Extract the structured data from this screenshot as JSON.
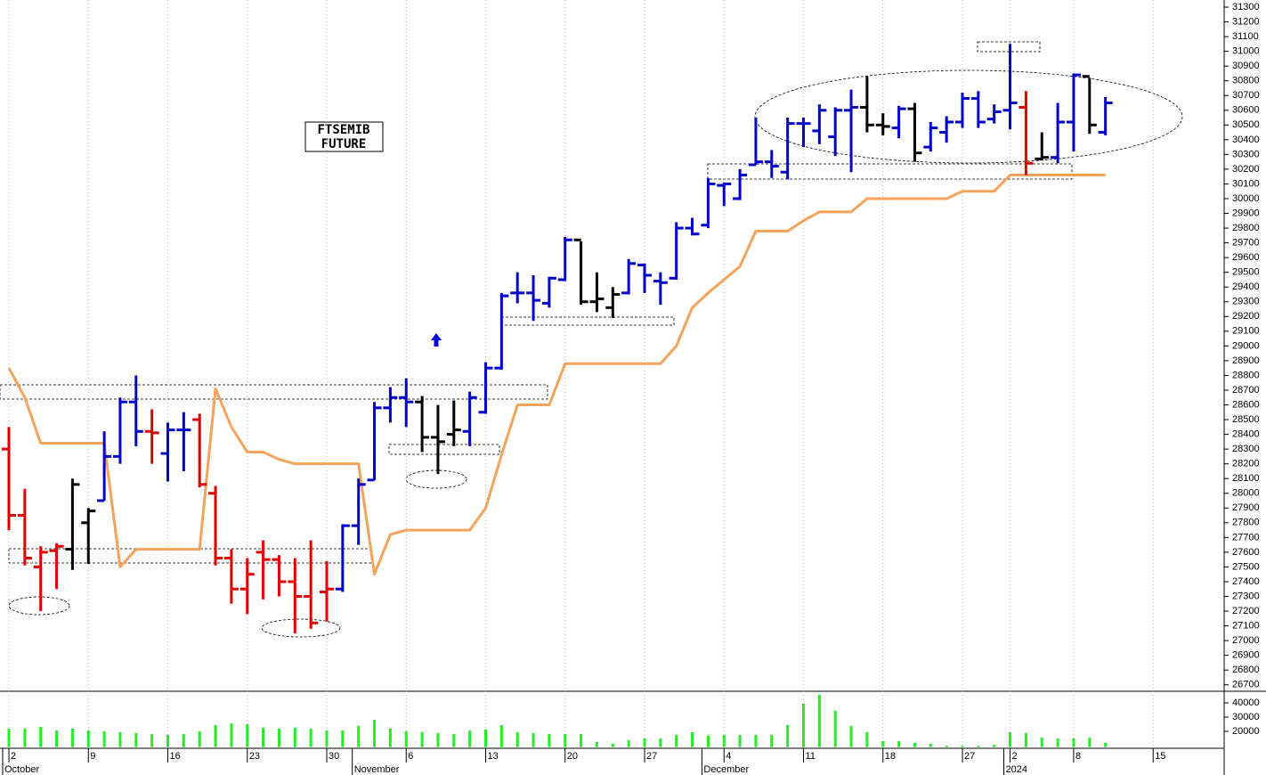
{
  "chart_data": {
    "type": "ohlc",
    "annotation": [
      "FTSEMIB",
      "FUTURE"
    ],
    "categories": [
      "2",
      null,
      null,
      null,
      null,
      "9",
      null,
      null,
      null,
      null,
      "16",
      null,
      null,
      null,
      null,
      "23",
      null,
      null,
      null,
      null,
      "30",
      null,
      null,
      null,
      null,
      "6",
      null,
      null,
      null,
      null,
      "13",
      null,
      null,
      null,
      null,
      "20",
      null,
      null,
      null,
      null,
      "27",
      null,
      null,
      null,
      null,
      "4",
      null,
      null,
      null,
      null,
      "11",
      null,
      null,
      null,
      null,
      "18",
      null,
      null,
      null,
      null,
      "27",
      null,
      null,
      "2",
      null,
      null,
      null,
      "8",
      null,
      null,
      null,
      null,
      "15",
      null,
      null,
      null,
      null
    ],
    "months": [
      "October",
      null,
      null,
      null,
      null,
      null,
      null,
      null,
      null,
      null,
      null,
      null,
      null,
      null,
      null,
      null,
      null,
      null,
      null,
      null,
      null,
      null,
      "November",
      null,
      null,
      null,
      null,
      null,
      null,
      null,
      null,
      null,
      null,
      null,
      null,
      null,
      null,
      null,
      null,
      null,
      null,
      null,
      null,
      null,
      "December",
      null,
      null,
      null,
      null,
      null,
      null,
      null,
      null,
      null,
      null,
      null,
      null,
      null,
      null,
      null,
      null,
      null,
      null,
      "2024",
      null,
      null,
      null,
      null,
      null,
      null,
      null,
      null,
      null,
      null,
      null,
      null,
      null
    ],
    "open": [
      28300,
      27850,
      27500,
      27610,
      27620,
      27800,
      27950,
      28250,
      28620,
      28420,
      28270,
      28430,
      28500,
      28000,
      27560,
      27350,
      27600,
      27550,
      27400,
      27300,
      27330,
      27350,
      27780,
      28090,
      28580,
      28650,
      28620,
      28380,
      28400,
      28420,
      28550,
      28850,
      29360,
      29360,
      29290,
      29450,
      29720,
      29300,
      29260,
      29360,
      29550,
      29440,
      29460,
      29800,
      29820,
      30090,
      30000,
      30230,
      30250,
      30180,
      30510,
      30460,
      30420,
      30600,
      30620,
      30500,
      30480,
      30610,
      30350,
      30450,
      30520,
      30680,
      30540,
      30600,
      30620,
      30270,
      30280,
      30520,
      30830,
      30450,
      null,
      null,
      null,
      null,
      null,
      null,
      null
    ],
    "high": [
      28450,
      28030,
      27640,
      27660,
      28100,
      27900,
      28420,
      28650,
      28800,
      28570,
      28480,
      28550,
      28540,
      28050,
      27620,
      27560,
      27680,
      27580,
      27560,
      27680,
      27540,
      27790,
      28100,
      28620,
      28720,
      28780,
      28660,
      28600,
      28630,
      28690,
      28890,
      29360,
      29500,
      29480,
      29470,
      29740,
      29710,
      29500,
      29400,
      29590,
      29560,
      29500,
      29840,
      29870,
      30140,
      30110,
      30200,
      30550,
      30330,
      30550,
      30550,
      30640,
      30620,
      30740,
      30830,
      30580,
      30630,
      30650,
      30520,
      30560,
      30720,
      30730,
      30640,
      31050,
      30730,
      30450,
      30650,
      30850,
      30820,
      30690,
      null,
      null,
      null,
      null,
      null,
      null,
      null
    ],
    "low": [
      27750,
      27510,
      27200,
      27350,
      27480,
      27520,
      27950,
      28200,
      28320,
      28200,
      28080,
      28150,
      28040,
      27510,
      27250,
      27180,
      27280,
      27300,
      27050,
      27080,
      27130,
      27330,
      27650,
      28090,
      28480,
      28450,
      28280,
      28130,
      28320,
      28320,
      28540,
      28840,
      29290,
      29170,
      29260,
      29440,
      29280,
      29230,
      29190,
      29350,
      29360,
      29280,
      29450,
      29750,
      29800,
      29950,
      29990,
      30230,
      30140,
      30130,
      30350,
      30370,
      30290,
      30180,
      30450,
      30430,
      30410,
      30250,
      30320,
      30380,
      30480,
      30480,
      30510,
      30470,
      30160,
      30260,
      30240,
      30320,
      30440,
      30430,
      null,
      null,
      null,
      null,
      null,
      null,
      null
    ],
    "close": [
      27850,
      27560,
      27600,
      27640,
      28060,
      27880,
      28250,
      28620,
      28420,
      28410,
      28430,
      28430,
      28060,
      27560,
      27350,
      27450,
      27550,
      27400,
      27300,
      27120,
      27350,
      27780,
      28060,
      28580,
      28650,
      28620,
      28380,
      28350,
      28430,
      28650,
      28850,
      29340,
      29360,
      29310,
      29460,
      29720,
      29300,
      29320,
      29350,
      29560,
      29480,
      29430,
      29800,
      29760,
      30100,
      30100,
      30160,
      30250,
      30220,
      30510,
      30510,
      30600,
      30600,
      30620,
      30500,
      30490,
      30610,
      30310,
      30480,
      30520,
      30680,
      30520,
      30590,
      30650,
      30240,
      30280,
      30520,
      30840,
      30500,
      30650,
      null,
      null,
      null,
      null,
      null,
      null,
      null
    ],
    "bar_colors": [
      "#e00000",
      "#e00000",
      "#e00000",
      "#e00000",
      "#000000",
      "#000000",
      "#0000cc",
      "#0000cc",
      "#0000cc",
      "#e00000",
      "#0000cc",
      "#0000cc",
      "#e00000",
      "#e00000",
      "#e00000",
      "#e00000",
      "#e00000",
      "#e00000",
      "#e00000",
      "#e00000",
      "#e00000",
      "#0000cc",
      "#0000cc",
      "#0000cc",
      "#0000cc",
      "#0000cc",
      "#000000",
      "#000000",
      "#000000",
      "#0000cc",
      "#0000cc",
      "#0000cc",
      "#0000cc",
      "#0000cc",
      "#0000cc",
      "#0000cc",
      "#000000",
      "#000000",
      "#000000",
      "#0000cc",
      "#0000cc",
      "#0000cc",
      "#0000cc",
      "#0000cc",
      "#0000cc",
      "#0000cc",
      "#0000cc",
      "#0000cc",
      "#0000cc",
      "#0000cc",
      "#0000cc",
      "#0000cc",
      "#0000cc",
      "#0000cc",
      "#000000",
      "#000000",
      "#0000cc",
      "#000000",
      "#0000cc",
      "#0000cc",
      "#0000cc",
      "#0000cc",
      "#0000cc",
      "#0000cc",
      "#e00000",
      "#000000",
      "#0000cc",
      "#0000cc",
      "#000000",
      "#0000cc",
      null,
      null,
      null,
      null,
      null,
      null,
      null
    ],
    "series": [
      {
        "color": "#f5a35a",
        "values": [
          28850,
          28650,
          28340,
          28340,
          28340,
          28340,
          28340,
          27500,
          27620,
          27620,
          27620,
          27620,
          27620,
          28710,
          28450,
          28280,
          28280,
          28230,
          28200,
          28200,
          28200,
          28200,
          28200,
          27450,
          27720,
          27750,
          27750,
          27750,
          27750,
          27750,
          27900,
          28260,
          28600,
          28600,
          28600,
          28880,
          28880,
          28880,
          28880,
          28880,
          28880,
          28880,
          29000,
          29260,
          29360,
          29450,
          29540,
          29780,
          29780,
          29780,
          29850,
          29910,
          29910,
          29910,
          30000,
          30000,
          30000,
          30000,
          30000,
          30000,
          30050,
          30050,
          30050,
          30160,
          30160,
          30160,
          30160,
          30160,
          30160,
          30160,
          null,
          null,
          null,
          null,
          null,
          null,
          null
        ]
      }
    ],
    "ylim": [
      26650,
      31340
    ],
    "yticks": [
      26700,
      26800,
      26900,
      27000,
      27100,
      27200,
      27300,
      27400,
      27500,
      27600,
      27700,
      27800,
      27900,
      28000,
      28100,
      28200,
      28300,
      28400,
      28500,
      28600,
      28700,
      28800,
      28900,
      29000,
      29100,
      29200,
      29300,
      29400,
      29500,
      29600,
      29700,
      29800,
      29900,
      30000,
      30100,
      30200,
      30300,
      30400,
      30500,
      30600,
      30700,
      30800,
      30900,
      31000,
      31100,
      31200,
      31300
    ],
    "volume": {
      "color": "#22ee22",
      "values": [
        21900,
        21900,
        23100,
        20600,
        21900,
        20600,
        20000,
        19400,
        18800,
        18100,
        17500,
        18100,
        20000,
        24400,
        25600,
        25000,
        22500,
        21900,
        22500,
        21900,
        20600,
        20600,
        23800,
        28100,
        21900,
        20000,
        19400,
        18800,
        18100,
        20600,
        21300,
        24400,
        19400,
        18800,
        18100,
        18100,
        18100,
        12500,
        11300,
        13800,
        15000,
        15000,
        17500,
        19400,
        16900,
        17500,
        17500,
        17500,
        17500,
        24400,
        39400,
        45600,
        34400,
        23800,
        19400,
        13100,
        13100,
        11900,
        11300,
        10000,
        10000,
        10000,
        10600,
        19400,
        18800,
        15600,
        15000,
        15000,
        15600,
        11900,
        null,
        null,
        null,
        null,
        null,
        null,
        null
      ],
      "ylim": [
        9000,
        49000
      ],
      "yticks": [
        20000,
        30000,
        40000
      ]
    },
    "grid": true
  }
}
